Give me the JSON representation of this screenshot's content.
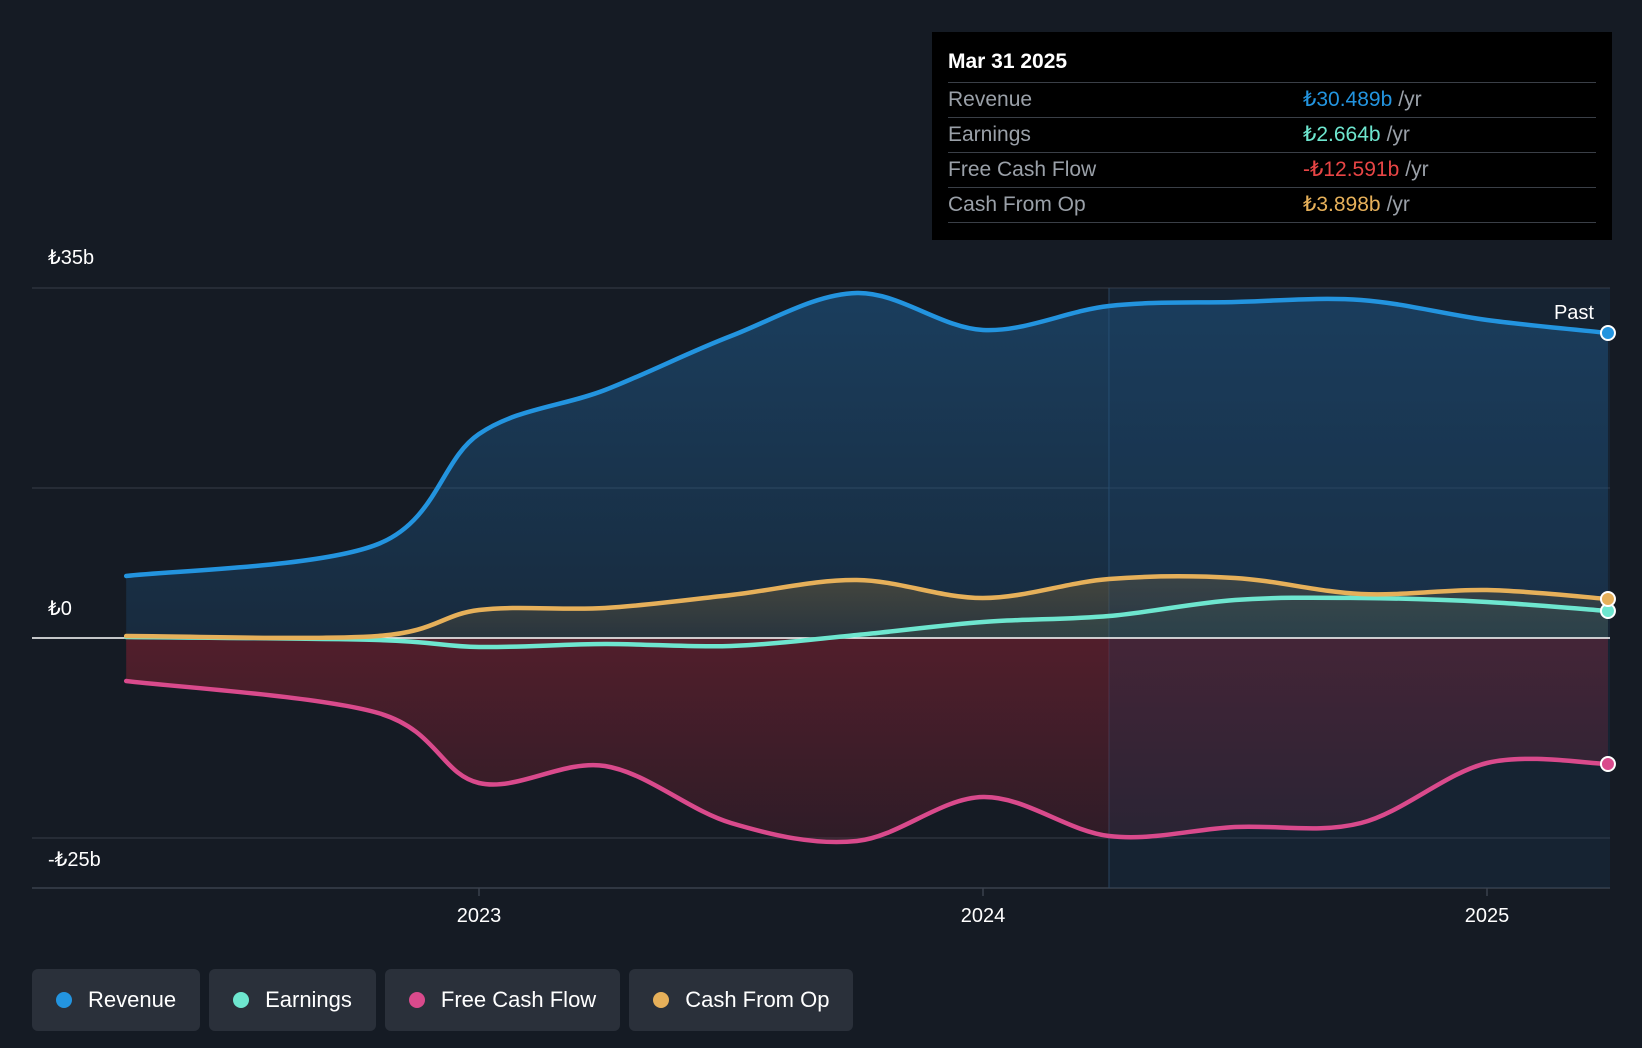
{
  "chart_data": {
    "type": "area",
    "y_ticks": [
      {
        "label": "₺35b",
        "value": 35
      },
      {
        "label": "₺0",
        "value": 0
      },
      {
        "label": "-₺25b",
        "value": -25
      }
    ],
    "ylim": [
      -25,
      35
    ],
    "x_ticks": [
      {
        "label": "2023",
        "value": 2023.0
      },
      {
        "label": "2024",
        "value": 2024.0
      },
      {
        "label": "2025",
        "value": 2025.0
      }
    ],
    "x": [
      2022.3,
      2022.8,
      2023.0,
      2023.25,
      2023.5,
      2023.75,
      2024.0,
      2024.25,
      2024.5,
      2024.75,
      2025.0,
      2025.24
    ],
    "series": [
      {
        "name": "Revenue",
        "color": "#2394df",
        "values": [
          6.2,
          9.4,
          20.4,
          24.8,
          30.2,
          34.5,
          30.8,
          33.2,
          33.6,
          33.8,
          31.8,
          30.5
        ]
      },
      {
        "name": "Earnings",
        "color": "#6ee6cf",
        "values": [
          0.1,
          -0.2,
          -0.9,
          -0.6,
          -0.8,
          0.3,
          1.6,
          2.2,
          3.8,
          4.0,
          3.6,
          2.7
        ]
      },
      {
        "name": "Free Cash Flow",
        "color": "#d94a8c",
        "values": [
          -4.3,
          -7.5,
          -14.5,
          -12.8,
          -18.5,
          -20.3,
          -15.9,
          -19.8,
          -18.9,
          -18.5,
          -12.5,
          -12.6
        ]
      },
      {
        "name": "Cash From Op",
        "color": "#e6b05a",
        "values": [
          0.2,
          0.2,
          2.8,
          3.0,
          4.3,
          5.8,
          4.0,
          5.9,
          6.0,
          4.4,
          4.8,
          3.9
        ]
      }
    ],
    "past_label": "Past",
    "tooltip": {
      "date": "Mar 31 2025",
      "rows": [
        {
          "name": "Revenue",
          "value": "₺30.489b",
          "unit": "/yr",
          "color": "#2394df"
        },
        {
          "name": "Earnings",
          "value": "₺2.664b",
          "unit": "/yr",
          "color": "#6ee6cf"
        },
        {
          "name": "Free Cash Flow",
          "value": "-₺12.591b",
          "unit": "/yr",
          "color": "#e84545"
        },
        {
          "name": "Cash From Op",
          "value": "₺3.898b",
          "unit": "/yr",
          "color": "#e6b05a"
        }
      ]
    },
    "legend": [
      {
        "label": "Revenue",
        "color": "#2394df"
      },
      {
        "label": "Earnings",
        "color": "#6ee6cf"
      },
      {
        "label": "Free Cash Flow",
        "color": "#d94a8c"
      },
      {
        "label": "Cash From Op",
        "color": "#e6b05a"
      }
    ]
  }
}
